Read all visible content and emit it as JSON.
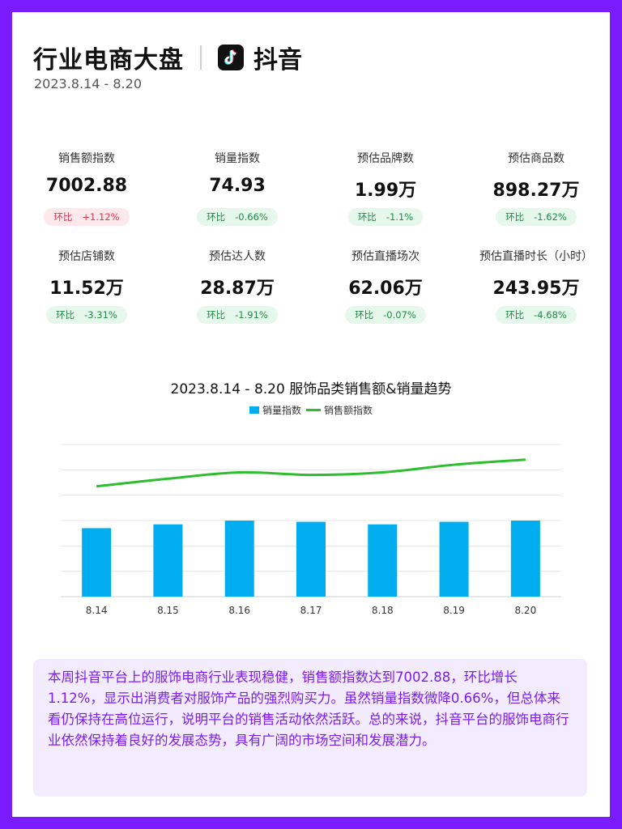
{
  "header": {
    "title": "行业电商大盘",
    "platform": "抖音",
    "platform_icon": "tiktok-icon",
    "date": "2023.8.14 - 8.20"
  },
  "metrics": [
    {
      "label": "销售额指数",
      "value": "7002.88",
      "change_label": "环比",
      "change": "+1.12%",
      "trend": "up"
    },
    {
      "label": "销量指数",
      "value": "74.93",
      "change_label": "环比",
      "change": "-0.66%",
      "trend": "down"
    },
    {
      "label": "预估品牌数",
      "value": "1.99万",
      "change_label": "环比",
      "change": "-1.1%",
      "trend": "down"
    },
    {
      "label": "预估商品数",
      "value": "898.27万",
      "change_label": "环比",
      "change": "-1.62%",
      "trend": "down"
    },
    {
      "label": "预估店铺数",
      "value": "11.52万",
      "change_label": "环比",
      "change": "-3.31%",
      "trend": "down"
    },
    {
      "label": "预估达人数",
      "value": "28.87万",
      "change_label": "环比",
      "change": "-1.91%",
      "trend": "down"
    },
    {
      "label": "预估直播场次",
      "value": "62.06万",
      "change_label": "环比",
      "change": "-0.07%",
      "trend": "down"
    },
    {
      "label": "预估直播时长（小时）",
      "value": "243.95万",
      "change_label": "环比",
      "change": "-4.68%",
      "trend": "down"
    }
  ],
  "colors": {
    "up": "#e0314b",
    "down": "#1f8a45",
    "bar": "#00aeef",
    "line": "#2ebd2e",
    "accent": "#7b1cff"
  },
  "chart_data": {
    "type": "bar",
    "title": "2023.8.14 - 8.20 服饰品类销售额&销量趋势",
    "categories": [
      "8.14",
      "8.15",
      "8.16",
      "8.17",
      "8.18",
      "8.19",
      "8.20"
    ],
    "series": [
      {
        "name": "销量指数",
        "type": "bar",
        "values": [
          5.4,
          5.7,
          6.0,
          5.9,
          5.7,
          5.9,
          6.0
        ]
      },
      {
        "name": "销售额指数",
        "type": "line",
        "values": [
          8.7,
          9.3,
          9.8,
          9.6,
          9.8,
          10.4,
          10.8
        ]
      }
    ],
    "ylim": [
      0,
      12
    ],
    "grid": true,
    "legend_position": "top-center"
  },
  "summary": "本周抖音平台上的服饰电商行业表现稳健，销售额指数达到7002.88，环比增长1.12%，显示出消费者对服饰产品的强烈购买力。虽然销量指数微降0.66%，但总体来看仍保持在高位运行，说明平台的销售活动依然活跃。总的来说，抖音平台的服饰电商行业依然保持着良好的发展态势，具有广阔的市场空间和发展潜力。"
}
